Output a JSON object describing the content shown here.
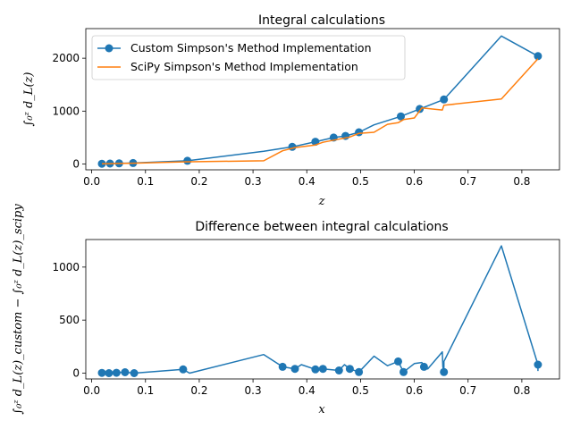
{
  "chart_data": [
    {
      "type": "line",
      "title": "Integral calculations",
      "xlabel": "z",
      "ylabel": "∫₀ᶻ d_L(z)",
      "xlim": [
        -0.011,
        0.87
      ],
      "ylim": [
        -110,
        2560
      ],
      "xticks": [
        "0.0",
        "0.1",
        "0.2",
        "0.3",
        "0.4",
        "0.5",
        "0.6",
        "0.7",
        "0.8"
      ],
      "xtick_values": [
        0.0,
        0.1,
        0.2,
        0.3,
        0.4,
        0.5,
        0.6,
        0.7,
        0.8
      ],
      "yticks": [
        "0",
        "1000",
        "2000"
      ],
      "ytick_values": [
        0,
        1000,
        2000
      ],
      "legend_position": "upper-left",
      "series": [
        {
          "name": "Custom Simpson's Method Implementation",
          "color": "#1f77b4",
          "marker": "circle",
          "points": [
            [
              0.019,
              5
            ],
            [
              0.034,
              8
            ],
            [
              0.051,
              12
            ],
            [
              0.077,
              18
            ],
            [
              0.178,
              60
            ],
            [
              0.32,
              240
            ],
            [
              0.373,
              325
            ],
            [
              0.416,
              420
            ],
            [
              0.45,
              500
            ],
            [
              0.472,
              530
            ],
            [
              0.497,
              600
            ],
            [
              0.525,
              740
            ],
            [
              0.575,
              900
            ],
            [
              0.61,
              1040
            ],
            [
              0.655,
              1220
            ],
            [
              0.762,
              2420
            ],
            [
              0.83,
              2040
            ]
          ],
          "marker_points": [
            [
              0.019,
              5
            ],
            [
              0.034,
              8
            ],
            [
              0.051,
              12
            ],
            [
              0.077,
              18
            ],
            [
              0.178,
              60
            ],
            [
              0.373,
              325
            ],
            [
              0.416,
              420
            ],
            [
              0.45,
              500
            ],
            [
              0.472,
              530
            ],
            [
              0.497,
              600
            ],
            [
              0.575,
              900
            ],
            [
              0.61,
              1040
            ],
            [
              0.655,
              1220
            ],
            [
              0.83,
              2040
            ]
          ]
        },
        {
          "name": "SciPy Simpson's Method Implementation",
          "color": "#ff7f0e",
          "marker": "none",
          "points": [
            [
              0.019,
              4
            ],
            [
              0.034,
              7
            ],
            [
              0.051,
              10
            ],
            [
              0.077,
              15
            ],
            [
              0.17,
              40
            ],
            [
              0.32,
              60
            ],
            [
              0.355,
              250
            ],
            [
              0.378,
              310
            ],
            [
              0.416,
              360
            ],
            [
              0.43,
              410
            ],
            [
              0.46,
              470
            ],
            [
              0.48,
              510
            ],
            [
              0.497,
              580
            ],
            [
              0.525,
              600
            ],
            [
              0.55,
              750
            ],
            [
              0.57,
              780
            ],
            [
              0.58,
              840
            ],
            [
              0.6,
              870
            ],
            [
              0.614,
              1060
            ],
            [
              0.652,
              1020
            ],
            [
              0.655,
              1110
            ],
            [
              0.762,
              1230
            ],
            [
              0.83,
              1990
            ]
          ]
        }
      ]
    },
    {
      "type": "scatter",
      "title": "Difference between integral calculations",
      "xlabel": "x",
      "ylabel": "∫₀ᶻ d_L(z)_custom − ∫₀ᶻ d_L(z)_scipy",
      "xlim": [
        -0.011,
        0.87
      ],
      "ylim": [
        -55,
        1260
      ],
      "xticks": [
        "0.0",
        "0.1",
        "0.2",
        "0.3",
        "0.4",
        "0.5",
        "0.6",
        "0.7",
        "0.8"
      ],
      "xtick_values": [
        0.0,
        0.1,
        0.2,
        0.3,
        0.4,
        0.5,
        0.6,
        0.7,
        0.8
      ],
      "yticks": [
        "0",
        "500",
        "1000"
      ],
      "ytick_values": [
        0,
        500,
        1000
      ],
      "series": [
        {
          "color": "#1f77b4",
          "points": [
            [
              0.019,
              2
            ],
            [
              0.032,
              0
            ],
            [
              0.046,
              3
            ],
            [
              0.062,
              8
            ],
            [
              0.079,
              0
            ],
            [
              0.17,
              35
            ],
            [
              0.182,
              0
            ],
            [
              0.32,
              175
            ],
            [
              0.355,
              60
            ],
            [
              0.378,
              40
            ],
            [
              0.39,
              80
            ],
            [
              0.416,
              35
            ],
            [
              0.43,
              40
            ],
            [
              0.46,
              25
            ],
            [
              0.47,
              80
            ],
            [
              0.48,
              40
            ],
            [
              0.497,
              10
            ],
            [
              0.525,
              160
            ],
            [
              0.55,
              70
            ],
            [
              0.57,
              110
            ],
            [
              0.58,
              10
            ],
            [
              0.6,
              90
            ],
            [
              0.614,
              100
            ],
            [
              0.618,
              60
            ],
            [
              0.625,
              40
            ],
            [
              0.652,
              200
            ],
            [
              0.653,
              60
            ],
            [
              0.655,
              10
            ],
            [
              0.655,
              110
            ],
            [
              0.762,
              1200
            ],
            [
              0.83,
              80
            ],
            [
              0.83,
              20
            ]
          ],
          "marker_points": [
            [
              0.019,
              2
            ],
            [
              0.032,
              0
            ],
            [
              0.046,
              3
            ],
            [
              0.062,
              8
            ],
            [
              0.079,
              0
            ],
            [
              0.17,
              35
            ],
            [
              0.355,
              60
            ],
            [
              0.378,
              40
            ],
            [
              0.416,
              35
            ],
            [
              0.43,
              40
            ],
            [
              0.46,
              25
            ],
            [
              0.48,
              40
            ],
            [
              0.497,
              10
            ],
            [
              0.57,
              110
            ],
            [
              0.58,
              10
            ],
            [
              0.618,
              60
            ],
            [
              0.655,
              10
            ],
            [
              0.83,
              80
            ]
          ]
        }
      ]
    }
  ]
}
